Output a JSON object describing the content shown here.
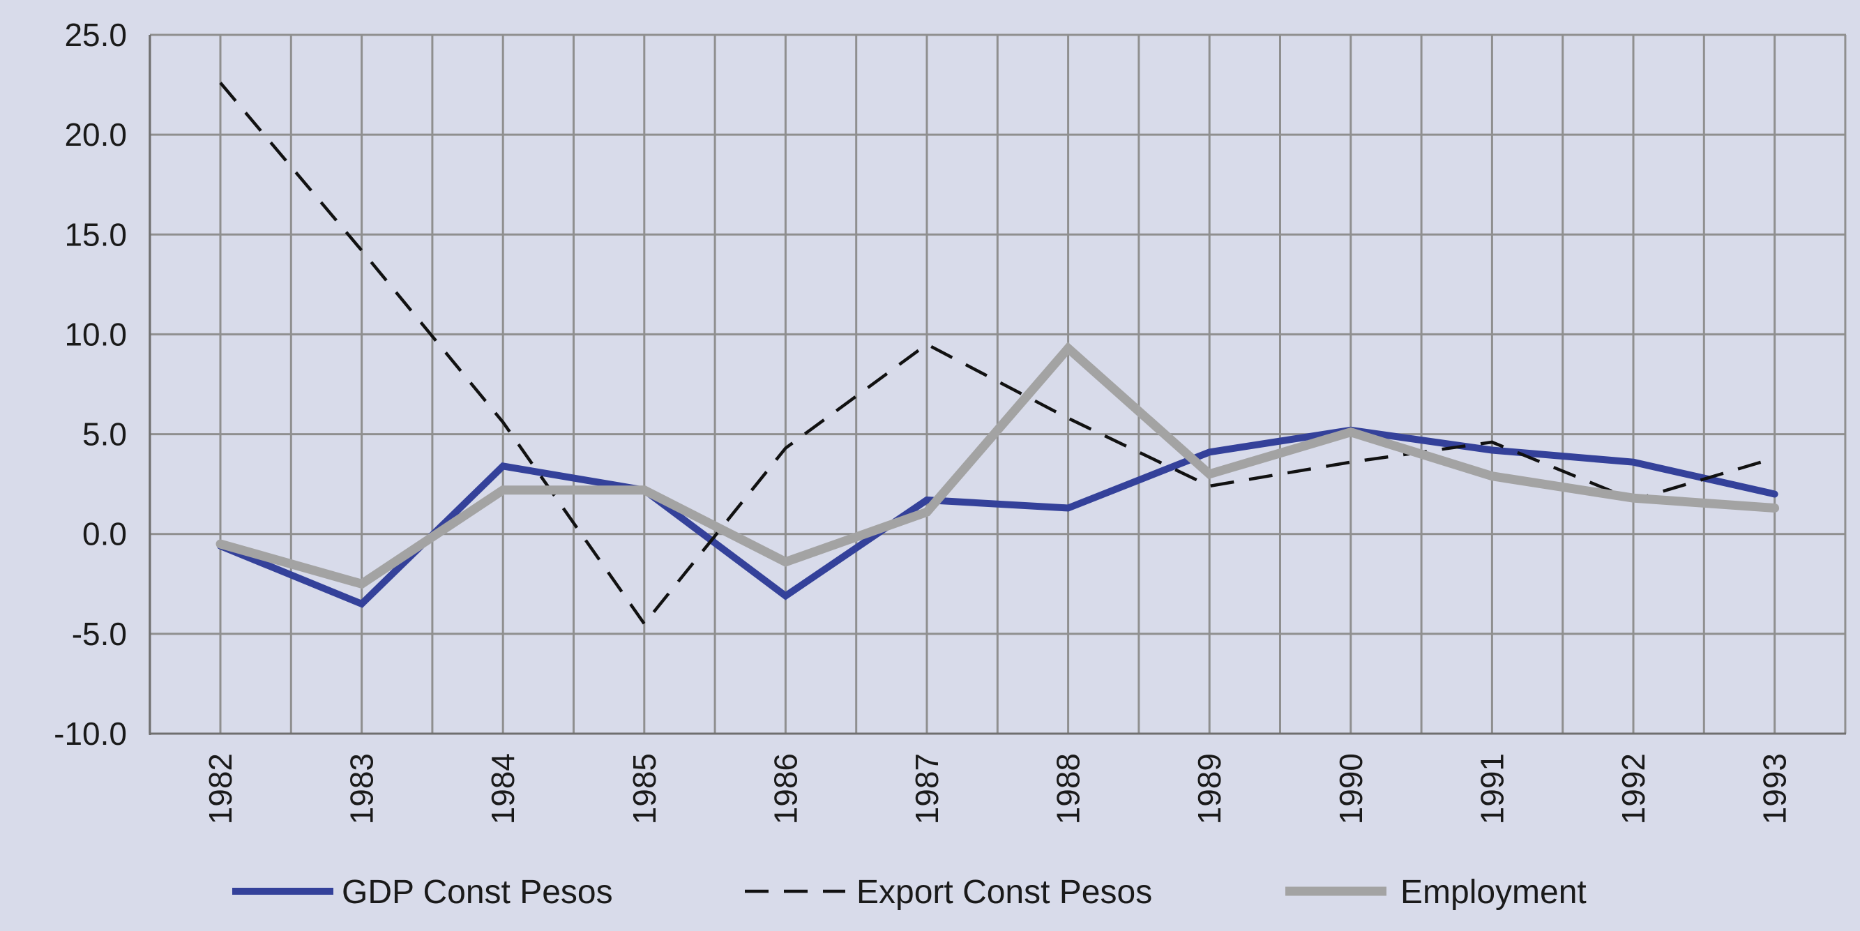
{
  "chart_data": {
    "type": "line",
    "title": "",
    "xlabel": "",
    "ylabel": "",
    "x": [
      1982,
      1983,
      1984,
      1985,
      1986,
      1987,
      1988,
      1989,
      1990,
      1991,
      1992,
      1993
    ],
    "x_tick_labels": [
      "1982",
      "1983",
      "1984",
      "1985",
      "1986",
      "1987",
      "1988",
      "1989",
      "1990",
      "1991",
      "1992",
      "1993"
    ],
    "ylim": [
      -10,
      25
    ],
    "y_ticks": [
      -10,
      -5,
      0,
      5,
      10,
      15,
      20,
      25
    ],
    "y_tick_labels": [
      "-10.0",
      "-5.0",
      "0.0",
      "5.0",
      "10.0",
      "15.0",
      "20.0",
      "25.0"
    ],
    "grid": true,
    "legend_position": "bottom",
    "colors": {
      "background": "#d8dbea",
      "grid": "#8f8f8f",
      "axis": "#6f6f6f"
    },
    "series": [
      {
        "name": "GDP Const Pesos",
        "color": "#34419a",
        "style": "solid",
        "values": [
          -0.6,
          -3.5,
          3.4,
          2.2,
          -3.1,
          1.7,
          1.3,
          4.1,
          5.2,
          4.2,
          3.6,
          2.0
        ]
      },
      {
        "name": "Export Const Pesos",
        "color": "#111111",
        "style": "dashed",
        "values": [
          22.6,
          14.2,
          5.6,
          -4.5,
          4.3,
          9.5,
          5.8,
          2.4,
          3.6,
          4.6,
          1.7,
          3.8
        ]
      },
      {
        "name": "Employment",
        "color": "#a3a3a3",
        "style": "solid-thick",
        "values": [
          -0.5,
          -2.5,
          2.2,
          2.2,
          -1.4,
          1.1,
          9.3,
          3.0,
          5.1,
          2.9,
          1.8,
          1.3
        ]
      }
    ]
  }
}
